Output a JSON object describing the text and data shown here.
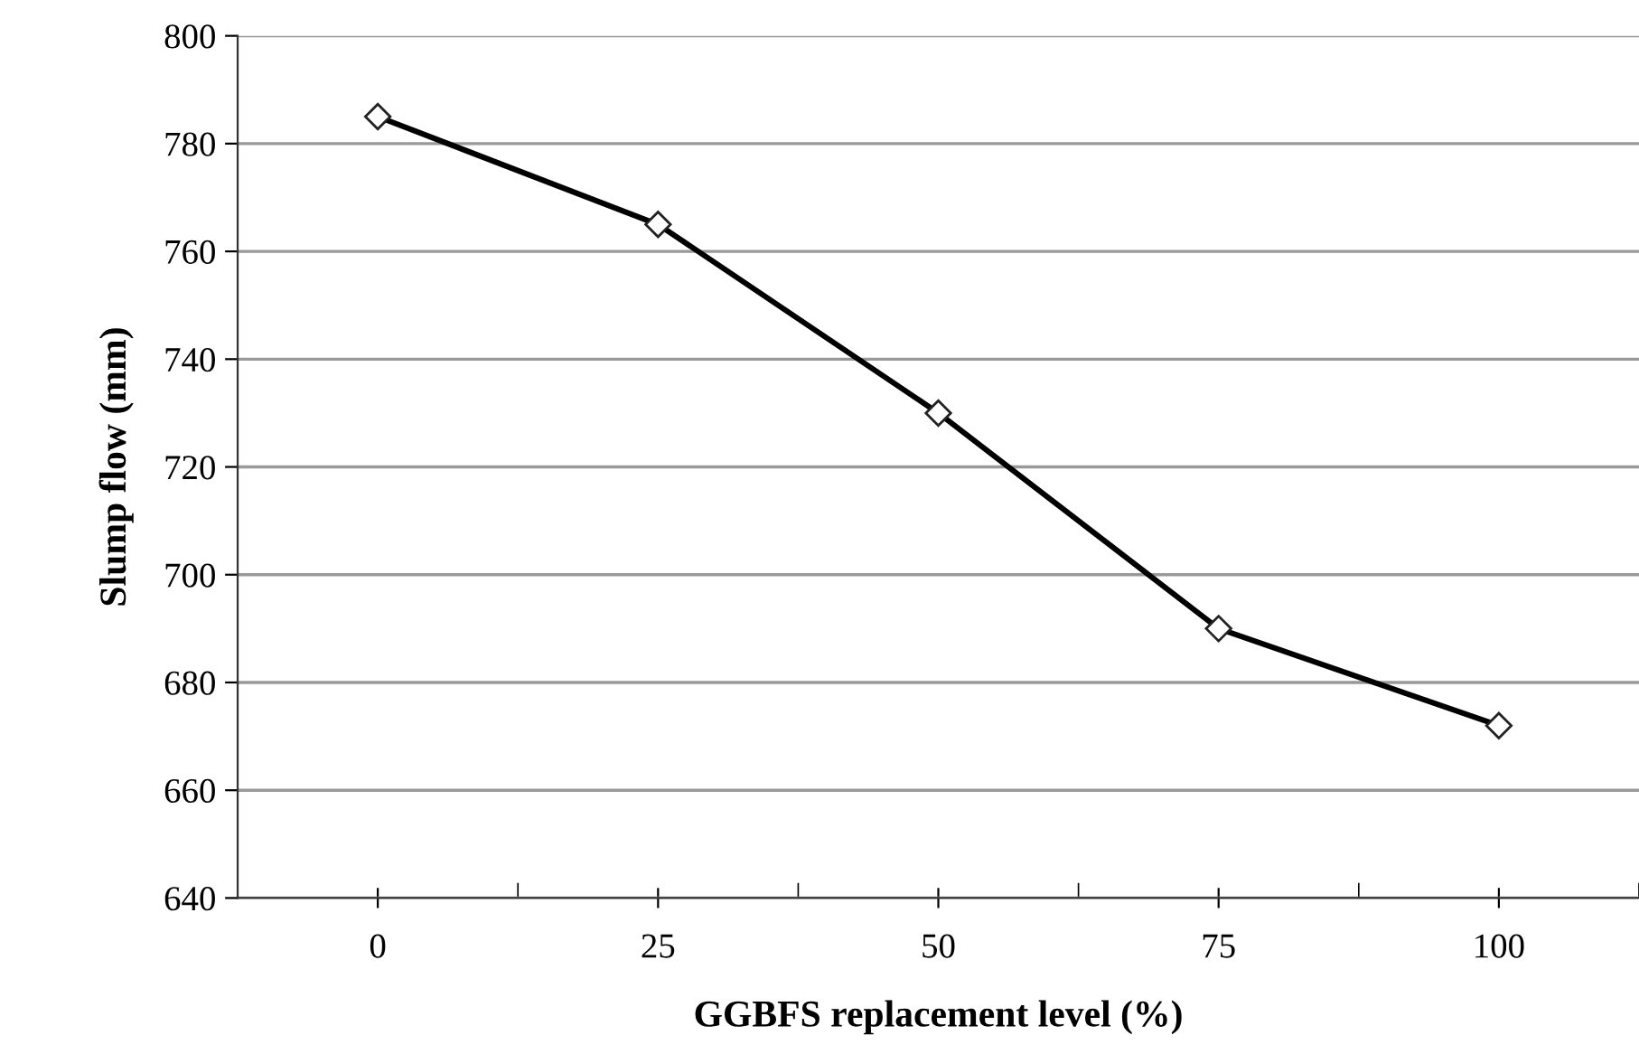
{
  "chart_data": {
    "type": "line",
    "xlabel": "GGBFS replacement level (%)",
    "ylabel": "Slump flow (mm)",
    "categories": [
      "0",
      "25",
      "50",
      "75",
      "100"
    ],
    "series": [
      {
        "color": "#000000",
        "values": [
          785,
          765,
          730,
          690,
          672
        ]
      }
    ],
    "ylim": [
      640,
      800
    ],
    "yticks": [
      640,
      660,
      680,
      700,
      720,
      740,
      760,
      780,
      800
    ],
    "grid": "y",
    "legend": false,
    "marker": "diamond",
    "line_style": "solid"
  }
}
